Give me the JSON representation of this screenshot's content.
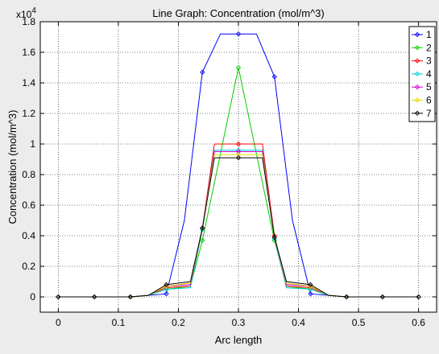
{
  "chart_data": {
    "type": "line",
    "title": "Line Graph: Concentration (mol/m^3)",
    "xlabel": "Arc length",
    "ylabel": "Concentration (mol/m^3)",
    "y_exponent": {
      "base": "x10",
      "power": "4"
    },
    "xlim": [
      -0.03,
      0.63
    ],
    "ylim": [
      -0.1,
      1.8
    ],
    "x_ticks": [
      0,
      0.1,
      0.2,
      0.3,
      0.4,
      0.5,
      0.6
    ],
    "x_tick_labels": [
      "0",
      "0.1",
      "0.2",
      "0.3",
      "0.4",
      "0.5",
      "0.6"
    ],
    "y_ticks": [
      0,
      0.2,
      0.4,
      0.6,
      0.8,
      1.0,
      1.2,
      1.4,
      1.6,
      1.8
    ],
    "y_tick_labels": [
      "0",
      "0.2",
      "0.4",
      "0.6",
      "0.8",
      "1",
      "1.2",
      "1.4",
      "1.6",
      "1.8"
    ],
    "grid": true,
    "legend_position": "top-right",
    "x": [
      0,
      0.06,
      0.12,
      0.18,
      0.24,
      0.3,
      0.36,
      0.42,
      0.48,
      0.54,
      0.6
    ],
    "series": [
      {
        "name": "1",
        "color": "#0000ff",
        "x": [
          0,
          0.06,
          0.12,
          0.15,
          0.18,
          0.21,
          0.24,
          0.27,
          0.3,
          0.33,
          0.36,
          0.39,
          0.42,
          0.45,
          0.48,
          0.54,
          0.6
        ],
        "values": [
          0,
          0,
          0,
          0.01,
          0.02,
          0.5,
          1.47,
          1.72,
          1.72,
          1.72,
          1.44,
          0.5,
          0.02,
          0.01,
          0,
          0,
          0
        ]
      },
      {
        "name": "2",
        "color": "#00cc00",
        "x": [
          0,
          0.06,
          0.12,
          0.15,
          0.18,
          0.22,
          0.24,
          0.3,
          0.36,
          0.38,
          0.42,
          0.45,
          0.48,
          0.54,
          0.6
        ],
        "values": [
          0,
          0,
          0,
          0.01,
          0.05,
          0.07,
          0.37,
          1.5,
          0.37,
          0.07,
          0.05,
          0.01,
          0,
          0,
          0
        ]
      },
      {
        "name": "3",
        "color": "#ff0000",
        "x": [
          0,
          0.06,
          0.12,
          0.15,
          0.18,
          0.22,
          0.24,
          0.26,
          0.3,
          0.34,
          0.36,
          0.38,
          0.42,
          0.45,
          0.48,
          0.54,
          0.6
        ],
        "values": [
          0,
          0,
          0,
          0.01,
          0.06,
          0.07,
          0.45,
          1.0,
          1.0,
          1.0,
          0.4,
          0.07,
          0.06,
          0.01,
          0,
          0,
          0
        ]
      },
      {
        "name": "4",
        "color": "#00cccc",
        "x": [
          0,
          0.06,
          0.12,
          0.15,
          0.18,
          0.22,
          0.24,
          0.26,
          0.3,
          0.34,
          0.36,
          0.38,
          0.42,
          0.45,
          0.48,
          0.54,
          0.6
        ],
        "values": [
          0,
          0,
          0,
          0.01,
          0.05,
          0.06,
          0.44,
          0.96,
          0.96,
          0.96,
          0.38,
          0.06,
          0.05,
          0.01,
          0,
          0,
          0
        ]
      },
      {
        "name": "5",
        "color": "#cc00cc",
        "x": [
          0,
          0.06,
          0.12,
          0.15,
          0.18,
          0.22,
          0.24,
          0.26,
          0.3,
          0.34,
          0.36,
          0.38,
          0.42,
          0.45,
          0.48,
          0.54,
          0.6
        ],
        "values": [
          0,
          0,
          0,
          0.01,
          0.07,
          0.08,
          0.45,
          0.95,
          0.95,
          0.95,
          0.39,
          0.08,
          0.07,
          0.01,
          0,
          0,
          0
        ]
      },
      {
        "name": "6",
        "color": "#e6d800",
        "x": [
          0,
          0.06,
          0.12,
          0.15,
          0.18,
          0.22,
          0.24,
          0.26,
          0.3,
          0.34,
          0.36,
          0.38,
          0.42,
          0.45,
          0.48,
          0.54,
          0.6
        ],
        "values": [
          0,
          0,
          0,
          0.01,
          0.07,
          0.09,
          0.45,
          0.93,
          0.93,
          0.93,
          0.39,
          0.09,
          0.07,
          0.01,
          0,
          0,
          0
        ]
      },
      {
        "name": "7",
        "color": "#000000",
        "x": [
          0,
          0.06,
          0.12,
          0.15,
          0.18,
          0.22,
          0.24,
          0.26,
          0.3,
          0.34,
          0.36,
          0.38,
          0.42,
          0.45,
          0.48,
          0.54,
          0.6
        ],
        "values": [
          0,
          0,
          0,
          0.01,
          0.08,
          0.1,
          0.45,
          0.91,
          0.91,
          0.91,
          0.39,
          0.1,
          0.08,
          0.01,
          0,
          0,
          0
        ]
      }
    ]
  }
}
